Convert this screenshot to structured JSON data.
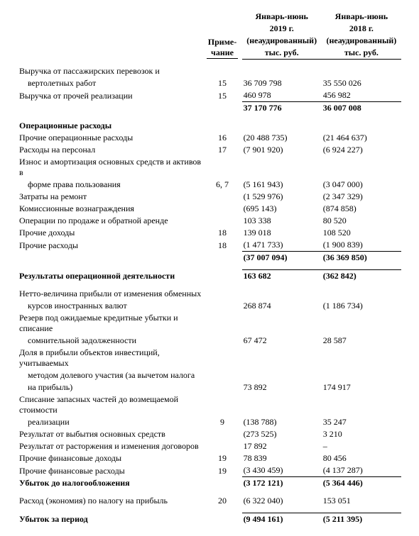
{
  "headers": {
    "note": "Приме-\nчание",
    "col2019_line1": "Январь-июнь",
    "col2019_line2": "2019 г.",
    "col2019_line3": "(неаудированный)",
    "col2019_line4": "тыс. руб.",
    "col2018_line1": "Январь-июнь",
    "col2018_line2": "2018 г.",
    "col2018_line3": "(неаудированный)",
    "col2018_line4": "тыс. руб."
  },
  "rows": {
    "r1_label_a": "Выручка от пассажирских перевозок и",
    "r1_label_b": "вертолетных работ",
    "r1_note": "15",
    "r1_v19": "36 709 798",
    "r1_v18": "35 550 026",
    "r2_label": "Выручка от прочей реализации",
    "r2_note": "15",
    "r2_v19": "460 978",
    "r2_v18": "456 982",
    "sub1_v19": "37 170 776",
    "sub1_v18": "36 007 008",
    "opex_title": "Операционные расходы",
    "r3_label": "Прочие операционные расходы",
    "r3_note": "16",
    "r3_v19": "(20 488 735)",
    "r3_v18": "(21 464 637)",
    "r4_label": "Расходы на персонал",
    "r4_note": "17",
    "r4_v19": "(7 901 920)",
    "r4_v18": "(6 924 227)",
    "r5_label_a": "Износ и амортизация основных средств и активов в",
    "r5_label_b": "форме права пользования",
    "r5_note": "6, 7",
    "r5_v19": "(5 161 943)",
    "r5_v18": "(3 047 000)",
    "r6_label": "Затраты на ремонт",
    "r6_v19": "(1 529 976)",
    "r6_v18": "(2 347 329)",
    "r7_label": "Комиссионные вознаграждения",
    "r7_v19": "(695 143)",
    "r7_v18": "(874 858)",
    "r8_label": "Операции по продаже и обратной аренде",
    "r8_v19": "103 338",
    "r8_v18": "80 520",
    "r9_label": "Прочие доходы",
    "r9_note": "18",
    "r9_v19": "139 018",
    "r9_v18": "108 520",
    "r10_label": "Прочие расходы",
    "r10_note": "18",
    "r10_v19": "(1 471 733)",
    "r10_v18": "(1 900 839)",
    "sub2_v19": "(37 007 094)",
    "sub2_v18": "(36 369 850)",
    "opres_label": "Результаты операционной деятельности",
    "opres_v19": "163 682",
    "opres_v18": "(362 842)",
    "r11_label_a": "Нетто-величина прибыли от изменения обменных",
    "r11_label_b": "курсов иностранных валют",
    "r11_v19": "268 874",
    "r11_v18": "(1 186 734)",
    "r12_label_a": "Резерв под ожидаемые кредитные убытки и списание",
    "r12_label_b": "сомнительной задолженности",
    "r12_v19": "67 472",
    "r12_v18": "28 587",
    "r13_label_a": "Доля в прибыли объектов инвестиций, учитываемых",
    "r13_label_b": "методом долевого участия (за вычетом налога",
    "r13_label_c": "на прибыль)",
    "r13_v19": "73 892",
    "r13_v18": "174 917",
    "r14_label_a": "Списание запасных частей до возмещаемой стоимости",
    "r14_label_b": "реализации",
    "r14_note": "9",
    "r14_v19": "(138 788)",
    "r14_v18": "35 247",
    "r15_label": "Результат от выбытия основных средств",
    "r15_v19": "(273 525)",
    "r15_v18": "3 210",
    "r16_label": "Результат от расторжения и изменения договоров",
    "r16_v19": "17 892",
    "r16_v18": "–",
    "r17_label": "Прочие финансовые доходы",
    "r17_note": "19",
    "r17_v19": "78 839",
    "r17_v18": "80 456",
    "r18_label": "Прочие финансовые расходы",
    "r18_note": "19",
    "r18_v19": "(3 430 459)",
    "r18_v18": "(4 137 287)",
    "pbt_label": "Убыток до налогообложения",
    "pbt_v19": "(3 172 121)",
    "pbt_v18": "(5 364 446)",
    "tax_label": "Расход (экономия) по налогу на прибыль",
    "tax_note": "20",
    "tax_v19": "(6 322 040)",
    "tax_v18": "153 051",
    "loss_label": "Убыток за период",
    "loss_v19": "(9 494 161)",
    "loss_v18": "(5 211 395)"
  }
}
